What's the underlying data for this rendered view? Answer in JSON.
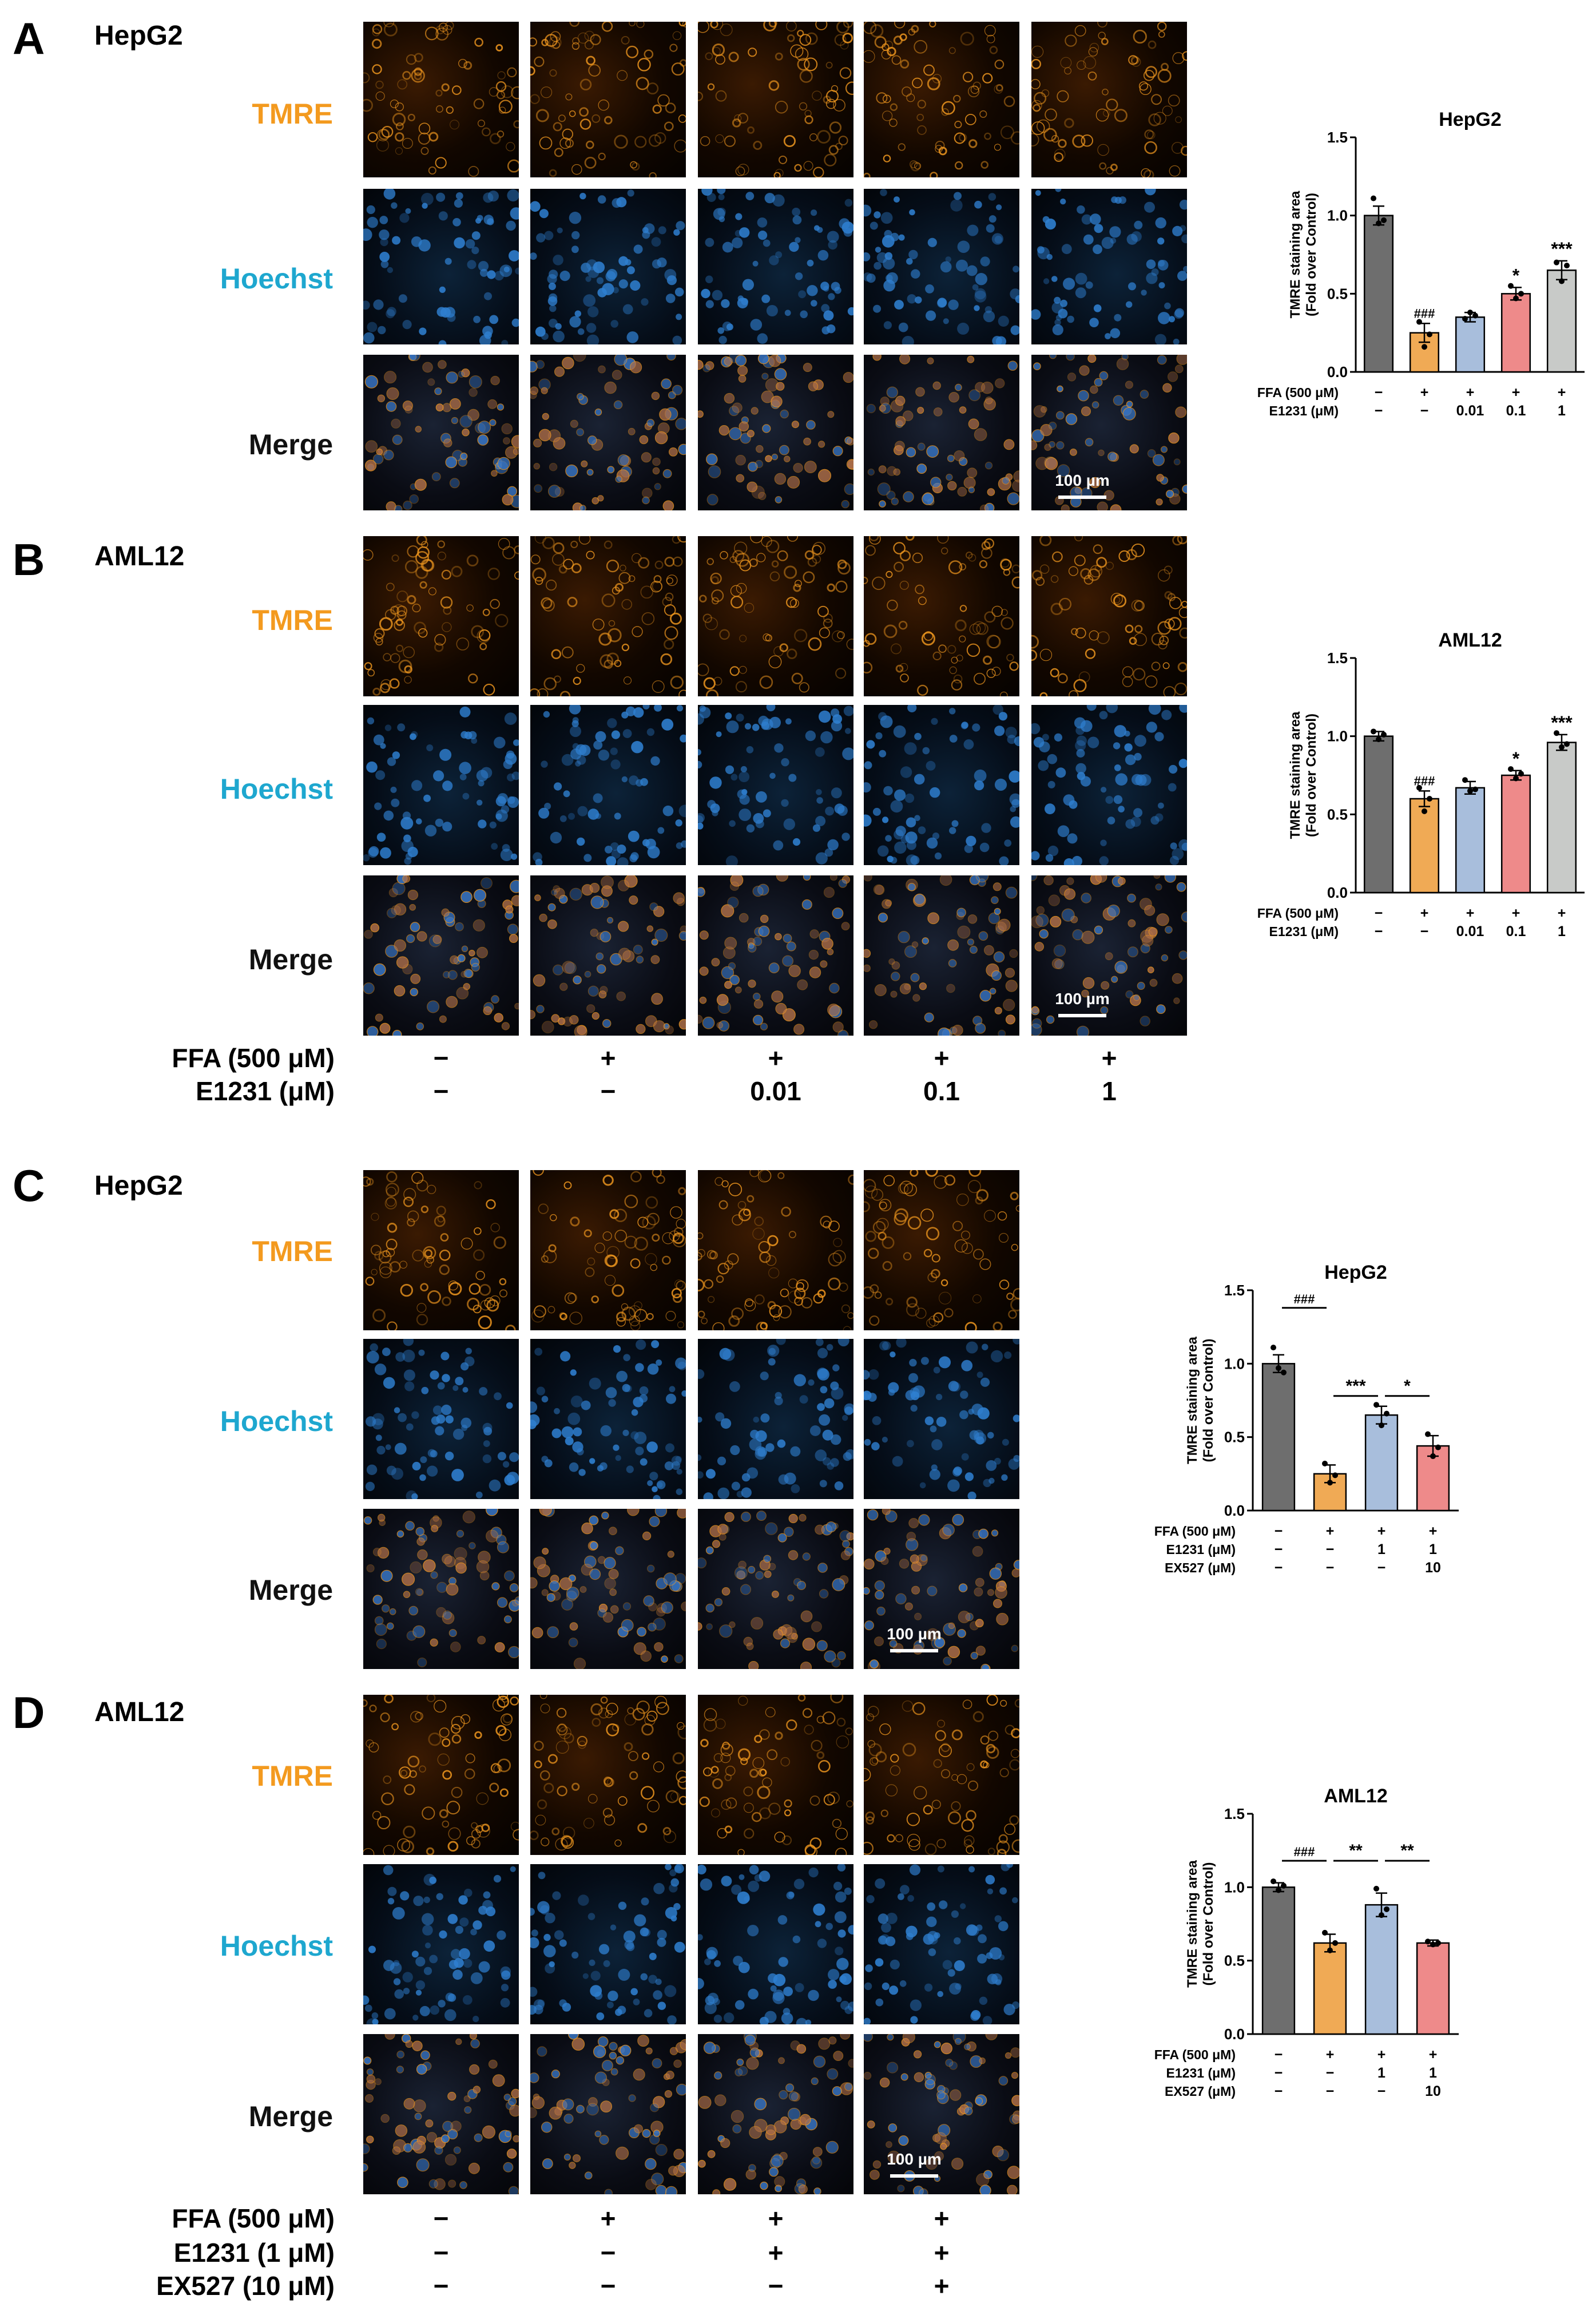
{
  "panels": [
    {
      "letter": "A",
      "cell": "HepG2",
      "scale": "100 µm",
      "channels": [
        "TMRE",
        "Hoechst",
        "Merge"
      ],
      "treatments": [
        {
          "label": "FFA (500 μM)",
          "values": [
            "−",
            "+",
            "+",
            "+",
            "+"
          ]
        },
        {
          "label": "E1231 (μM)",
          "values": [
            "−",
            "−",
            "0.01",
            "0.1",
            "1"
          ]
        }
      ]
    },
    {
      "letter": "B",
      "cell": "AML12",
      "scale": "100 µm",
      "channels": [
        "TMRE",
        "Hoechst",
        "Merge"
      ],
      "treatments": [
        {
          "label": "FFA  (500 μM)",
          "values": [
            "−",
            "+",
            "+",
            "+",
            "+"
          ]
        },
        {
          "label": "E1231  (μM)",
          "values": [
            "−",
            "−",
            "0.01",
            "0.1",
            "1"
          ]
        }
      ]
    },
    {
      "letter": "C",
      "cell": "HepG2",
      "scale": "100 µm",
      "channels": [
        "TMRE",
        "Hoechst",
        "Merge"
      ],
      "treatments": [
        {
          "label": "FFA (500 μM)",
          "values": [
            "−",
            "+",
            "+",
            "+"
          ]
        },
        {
          "label": "E1231 (μM)",
          "values": [
            "−",
            "−",
            "1",
            "1"
          ]
        },
        {
          "label": "EX527 (μM)",
          "values": [
            "−",
            "−",
            "−",
            "10"
          ]
        }
      ]
    },
    {
      "letter": "D",
      "cell": "AML12",
      "scale": "100 µm",
      "channels": [
        "TMRE",
        "Hoechst",
        "Merge"
      ],
      "treatments": [
        {
          "label": "FFA  (500 μM)",
          "values": [
            "−",
            "+",
            "+",
            "+"
          ]
        },
        {
          "label": "E1231  (1 μM)",
          "values": [
            "−",
            "−",
            "+",
            "+"
          ]
        },
        {
          "label": "EX527  (10 μM)",
          "values": [
            "−",
            "−",
            "−",
            "+"
          ]
        }
      ]
    }
  ],
  "colors": {
    "tmre": "#f39a1f",
    "hoechst": "#1ea7cf",
    "bars": [
      "#6e6e6e",
      "#f0aa55",
      "#a8bedc",
      "#ee8a8a",
      "#c8cac8"
    ]
  },
  "chart_data": [
    {
      "type": "bar",
      "title": "HepG2",
      "ylabel": "TMRE staining area\n(Fold over Control)",
      "ylim": [
        0,
        1.5
      ],
      "yticks": [
        "0.0",
        "0.5",
        "1.0",
        "1.5"
      ],
      "values": [
        1.0,
        0.25,
        0.35,
        0.5,
        0.65
      ],
      "errors": [
        0.06,
        0.06,
        0.03,
        0.04,
        0.06
      ],
      "points": [
        [
          1.11,
          0.95,
          0.97
        ],
        [
          0.32,
          0.16,
          0.24
        ],
        [
          0.34,
          0.38,
          0.36
        ],
        [
          0.55,
          0.47,
          0.5
        ],
        [
          0.7,
          0.58,
          0.68
        ]
      ],
      "annotations": [
        "",
        "###",
        "",
        "*",
        "***"
      ],
      "rows": [
        {
          "label": "FFA (500 μM)",
          "values": [
            "−",
            "+",
            "+",
            "+",
            "+"
          ]
        },
        {
          "label": "E1231 (μM)",
          "values": [
            "−",
            "−",
            "0.01",
            "0.1",
            "1"
          ]
        }
      ]
    },
    {
      "type": "bar",
      "title": "AML12",
      "ylabel": "TMRE staining area\n(Fold over Control)",
      "ylim": [
        0,
        1.5
      ],
      "yticks": [
        "0.0",
        "0.5",
        "1.0",
        "1.5"
      ],
      "values": [
        1.0,
        0.6,
        0.67,
        0.75,
        0.96
      ],
      "errors": [
        0.03,
        0.05,
        0.04,
        0.03,
        0.05
      ],
      "points": [
        [
          1.03,
          0.98,
          1.01
        ],
        [
          0.67,
          0.52,
          0.6
        ],
        [
          0.72,
          0.65,
          0.66
        ],
        [
          0.79,
          0.73,
          0.76
        ],
        [
          1.02,
          0.93,
          0.95
        ]
      ],
      "annotations": [
        "",
        "###",
        "",
        "*",
        "***"
      ],
      "rows": [
        {
          "label": "FFA (500 μM)",
          "values": [
            "−",
            "+",
            "+",
            "+",
            "+"
          ]
        },
        {
          "label": "E1231 (μM)",
          "values": [
            "−",
            "−",
            "0.01",
            "0.1",
            "1"
          ]
        }
      ]
    },
    {
      "type": "bar",
      "title": "HepG2",
      "ylabel": "TMRE staining area\n(Fold over Control)",
      "ylim": [
        0,
        1.5
      ],
      "yticks": [
        "0.0",
        "0.5",
        "1.0",
        "1.5"
      ],
      "values": [
        1.0,
        0.25,
        0.65,
        0.44
      ],
      "errors": [
        0.06,
        0.06,
        0.06,
        0.07
      ],
      "points": [
        [
          1.11,
          0.97,
          0.94
        ],
        [
          0.32,
          0.19,
          0.24
        ],
        [
          0.72,
          0.58,
          0.66
        ],
        [
          0.52,
          0.37,
          0.43
        ]
      ],
      "brackets": [
        {
          "from": 0,
          "to": 1,
          "label": "###",
          "y": 1.38
        },
        {
          "from": 1,
          "to": 2,
          "label": "***",
          "y": 0.78
        },
        {
          "from": 2,
          "to": 3,
          "label": "*",
          "y": 0.78
        }
      ],
      "rows": [
        {
          "label": "FFA (500 μM)",
          "values": [
            "−",
            "+",
            "+",
            "+"
          ]
        },
        {
          "label": "E1231 (μM)",
          "values": [
            "−",
            "−",
            "1",
            "1"
          ]
        },
        {
          "label": "EX527 (μM)",
          "values": [
            "−",
            "−",
            "−",
            "10"
          ]
        }
      ]
    },
    {
      "type": "bar",
      "title": "AML12",
      "ylabel": "TMRE staining area\n(Fold over Control)",
      "ylim": [
        0,
        1.5
      ],
      "yticks": [
        "0.0",
        "0.5",
        "1.0",
        "1.5"
      ],
      "values": [
        1.0,
        0.62,
        0.88,
        0.62
      ],
      "errors": [
        0.03,
        0.06,
        0.08,
        0.02
      ],
      "points": [
        [
          1.04,
          0.98,
          1.01
        ],
        [
          0.69,
          0.57,
          0.62
        ],
        [
          0.99,
          0.81,
          0.85
        ],
        [
          0.63,
          0.61,
          0.62
        ]
      ],
      "brackets": [
        {
          "from": 0,
          "to": 1,
          "label": "###",
          "y": 1.18
        },
        {
          "from": 1,
          "to": 2,
          "label": "**",
          "y": 1.18
        },
        {
          "from": 2,
          "to": 3,
          "label": "**",
          "y": 1.18
        }
      ],
      "rows": [
        {
          "label": "FFA (500 μM)",
          "values": [
            "−",
            "+",
            "+",
            "+"
          ]
        },
        {
          "label": "E1231 (μM)",
          "values": [
            "−",
            "−",
            "1",
            "1"
          ]
        },
        {
          "label": "EX527 (μM)",
          "values": [
            "−",
            "−",
            "−",
            "10"
          ]
        }
      ]
    }
  ]
}
